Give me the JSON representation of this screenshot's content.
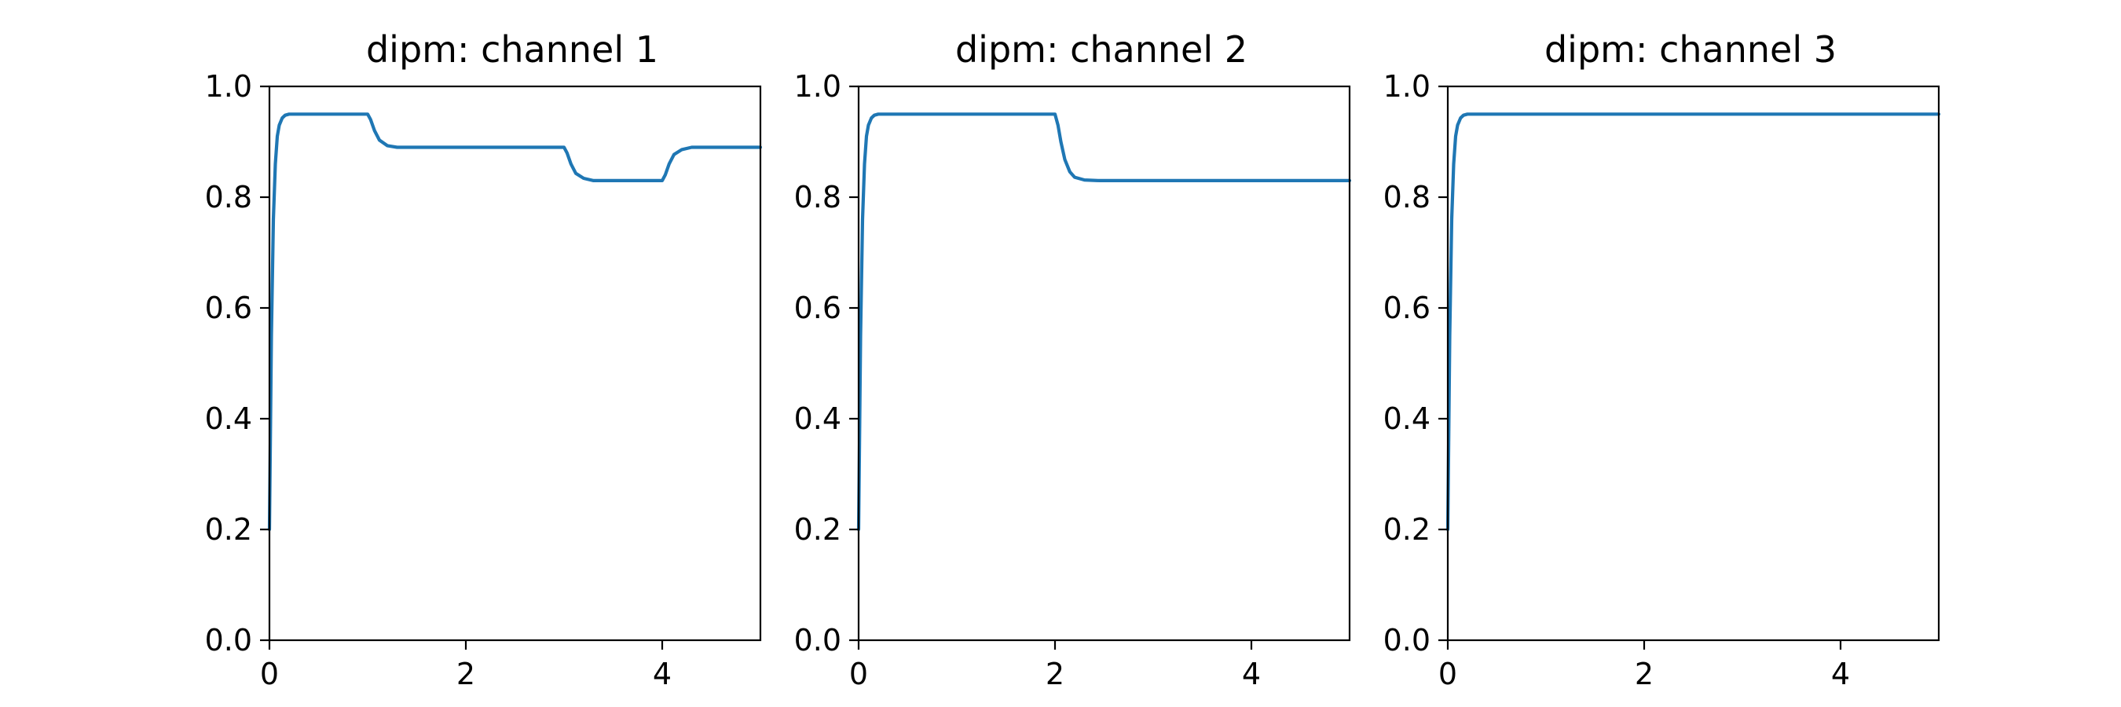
{
  "colors": {
    "series": "#1f77b4",
    "background": "#ffffff",
    "axes": "#000000"
  },
  "chart_data": [
    {
      "type": "line",
      "title": "dipm: channel 1",
      "xlabel": "",
      "ylabel": "",
      "xlim": [
        0,
        5
      ],
      "ylim": [
        0,
        1
      ],
      "xticks": [
        0,
        2,
        4
      ],
      "xtick_labels": [
        "0",
        "2",
        "4"
      ],
      "yticks": [
        0,
        0.2,
        0.4,
        0.6,
        0.8,
        1.0
      ],
      "ytick_labels": [
        "0.0",
        "0.2",
        "0.4",
        "0.6",
        "0.8",
        "1.0"
      ],
      "grid": false,
      "series": [
        {
          "x": [
            0,
            0.02,
            0.04,
            0.06,
            0.08,
            0.1,
            0.13,
            0.16,
            0.2,
            0.25,
            0.3,
            1.0,
            1.03,
            1.07,
            1.12,
            1.2,
            1.3,
            1.5,
            3.0,
            3.03,
            3.07,
            3.12,
            3.2,
            3.3,
            3.5,
            4.0,
            4.03,
            4.07,
            4.12,
            4.2,
            4.3,
            4.5,
            5.0
          ],
          "y": [
            0.2,
            0.55,
            0.76,
            0.86,
            0.91,
            0.93,
            0.943,
            0.948,
            0.95,
            0.95,
            0.95,
            0.95,
            0.94,
            0.92,
            0.903,
            0.893,
            0.89,
            0.89,
            0.89,
            0.88,
            0.86,
            0.843,
            0.834,
            0.83,
            0.83,
            0.83,
            0.84,
            0.86,
            0.877,
            0.886,
            0.89,
            0.89,
            0.89
          ]
        }
      ]
    },
    {
      "type": "line",
      "title": "dipm: channel 2",
      "xlabel": "",
      "ylabel": "",
      "xlim": [
        0,
        5
      ],
      "ylim": [
        0,
        1
      ],
      "xticks": [
        0,
        2,
        4
      ],
      "xtick_labels": [
        "0",
        "2",
        "4"
      ],
      "yticks": [
        0,
        0.2,
        0.4,
        0.6,
        0.8,
        1.0
      ],
      "ytick_labels": [
        "0.0",
        "0.2",
        "0.4",
        "0.6",
        "0.8",
        "1.0"
      ],
      "grid": false,
      "series": [
        {
          "x": [
            0,
            0.02,
            0.04,
            0.06,
            0.08,
            0.1,
            0.13,
            0.16,
            0.2,
            0.25,
            0.3,
            2.0,
            2.03,
            2.06,
            2.1,
            2.15,
            2.2,
            2.3,
            2.45,
            5.0
          ],
          "y": [
            0.2,
            0.55,
            0.76,
            0.86,
            0.91,
            0.93,
            0.943,
            0.948,
            0.95,
            0.95,
            0.95,
            0.95,
            0.93,
            0.9,
            0.868,
            0.846,
            0.836,
            0.831,
            0.83,
            0.83
          ]
        }
      ]
    },
    {
      "type": "line",
      "title": "dipm: channel 3",
      "xlabel": "",
      "ylabel": "",
      "xlim": [
        0,
        5
      ],
      "ylim": [
        0,
        1
      ],
      "xticks": [
        0,
        2,
        4
      ],
      "xtick_labels": [
        "0",
        "2",
        "4"
      ],
      "yticks": [
        0,
        0.2,
        0.4,
        0.6,
        0.8,
        1.0
      ],
      "ytick_labels": [
        "0.0",
        "0.2",
        "0.4",
        "0.6",
        "0.8",
        "1.0"
      ],
      "grid": false,
      "series": [
        {
          "x": [
            0,
            0.02,
            0.04,
            0.06,
            0.08,
            0.1,
            0.13,
            0.16,
            0.2,
            0.25,
            0.3,
            5.0
          ],
          "y": [
            0.2,
            0.55,
            0.76,
            0.86,
            0.91,
            0.93,
            0.943,
            0.948,
            0.95,
            0.95,
            0.95,
            0.95
          ]
        }
      ]
    }
  ]
}
